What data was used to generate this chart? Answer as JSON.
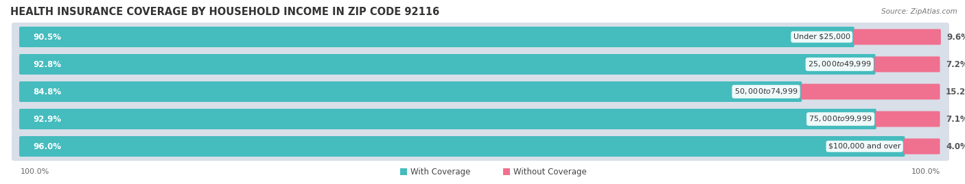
{
  "title": "HEALTH INSURANCE COVERAGE BY HOUSEHOLD INCOME IN ZIP CODE 92116",
  "source": "Source: ZipAtlas.com",
  "categories": [
    "Under $25,000",
    "$25,000 to $49,999",
    "$50,000 to $74,999",
    "$75,000 to $99,999",
    "$100,000 and over"
  ],
  "with_coverage": [
    90.5,
    92.8,
    84.8,
    92.9,
    96.0
  ],
  "without_coverage": [
    9.6,
    7.2,
    15.2,
    7.1,
    4.0
  ],
  "color_with": "#45BCBE",
  "color_without": "#F07090",
  "background_title": "#FFFFFF",
  "background_bars": "#E8EEF4",
  "bar_bg_color": "#D8E2EC",
  "title_fontsize": 10.5,
  "label_fontsize": 8.5,
  "tick_fontsize": 8,
  "legend_fontsize": 8.5,
  "x_left_label": "100.0%",
  "x_right_label": "100.0%"
}
